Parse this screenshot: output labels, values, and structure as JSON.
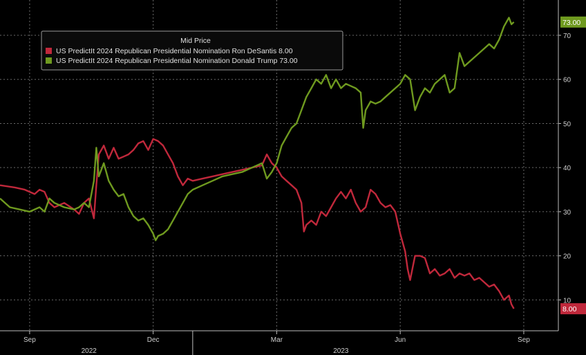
{
  "chart_data": {
    "type": "line",
    "legend": {
      "title": "Mid Price",
      "placement": "top-left"
    },
    "y_axis": {
      "side": "right",
      "range": [
        3,
        78
      ],
      "ticks": [
        10,
        20,
        30,
        40,
        50,
        60,
        70
      ],
      "grid": true
    },
    "x_axis": {
      "month_ticks": [
        {
          "label": "Sep",
          "x": 2022.67
        },
        {
          "label": "Dec",
          "x": 2022.92
        },
        {
          "label": "Mar",
          "x": 2023.17
        },
        {
          "label": "Jun",
          "x": 2023.42
        },
        {
          "label": "Sep",
          "x": 2023.67
        }
      ],
      "year_labels": [
        {
          "label": "2022",
          "x": 2022.79
        },
        {
          "label": "2023",
          "x": 2023.3
        }
      ],
      "range": [
        2022.61,
        2023.74
      ],
      "grid": true
    },
    "series": [
      {
        "name": "US PredictIt 2024 Republican Presidential Nomination Ron DeSantis",
        "last_value_text": "8.00",
        "color": "#c0283b",
        "points": [
          [
            2022.61,
            36
          ],
          [
            2022.64,
            35.5
          ],
          [
            2022.66,
            35
          ],
          [
            2022.68,
            34
          ],
          [
            2022.69,
            35
          ],
          [
            2022.7,
            34.5
          ],
          [
            2022.71,
            32
          ],
          [
            2022.72,
            31
          ],
          [
            2022.74,
            32
          ],
          [
            2022.76,
            30.5
          ],
          [
            2022.77,
            29.5
          ],
          [
            2022.78,
            32
          ],
          [
            2022.79,
            33
          ],
          [
            2022.8,
            28.5
          ],
          [
            2022.805,
            36
          ],
          [
            2022.81,
            43
          ],
          [
            2022.82,
            45
          ],
          [
            2022.83,
            42
          ],
          [
            2022.84,
            44.5
          ],
          [
            2022.85,
            42
          ],
          [
            2022.86,
            42.5
          ],
          [
            2022.87,
            43
          ],
          [
            2022.88,
            44
          ],
          [
            2022.89,
            45.5
          ],
          [
            2022.9,
            46
          ],
          [
            2022.91,
            44
          ],
          [
            2022.92,
            46.5
          ],
          [
            2022.93,
            46
          ],
          [
            2022.94,
            45
          ],
          [
            2022.95,
            43
          ],
          [
            2022.96,
            41
          ],
          [
            2022.97,
            38
          ],
          [
            2022.98,
            36
          ],
          [
            2022.99,
            37.5
          ],
          [
            2023.0,
            37
          ],
          [
            2023.02,
            37.5
          ],
          [
            2023.04,
            38
          ],
          [
            2023.06,
            38.5
          ],
          [
            2023.08,
            39
          ],
          [
            2023.1,
            39.5
          ],
          [
            2023.12,
            40
          ],
          [
            2023.14,
            40.5
          ],
          [
            2023.15,
            43
          ],
          [
            2023.16,
            41
          ],
          [
            2023.17,
            40
          ],
          [
            2023.18,
            38
          ],
          [
            2023.19,
            37
          ],
          [
            2023.2,
            36
          ],
          [
            2023.21,
            35
          ],
          [
            2023.22,
            32
          ],
          [
            2023.225,
            25.5
          ],
          [
            2023.23,
            27
          ],
          [
            2023.24,
            28
          ],
          [
            2023.25,
            27
          ],
          [
            2023.26,
            30
          ],
          [
            2023.27,
            29
          ],
          [
            2023.28,
            31
          ],
          [
            2023.29,
            33
          ],
          [
            2023.3,
            34.5
          ],
          [
            2023.31,
            33
          ],
          [
            2023.32,
            35
          ],
          [
            2023.33,
            32
          ],
          [
            2023.34,
            30
          ],
          [
            2023.35,
            31
          ],
          [
            2023.36,
            35
          ],
          [
            2023.37,
            34
          ],
          [
            2023.38,
            32
          ],
          [
            2023.39,
            31
          ],
          [
            2023.4,
            31.5
          ],
          [
            2023.41,
            30
          ],
          [
            2023.42,
            25
          ],
          [
            2023.43,
            21
          ],
          [
            2023.435,
            17
          ],
          [
            2023.44,
            14.5
          ],
          [
            2023.45,
            20
          ],
          [
            2023.46,
            20
          ],
          [
            2023.47,
            19.5
          ],
          [
            2023.48,
            16
          ],
          [
            2023.49,
            17
          ],
          [
            2023.5,
            15.5
          ],
          [
            2023.51,
            16
          ],
          [
            2023.52,
            17
          ],
          [
            2023.53,
            15
          ],
          [
            2023.54,
            16
          ],
          [
            2023.55,
            15.5
          ],
          [
            2023.56,
            16
          ],
          [
            2023.57,
            14.5
          ],
          [
            2023.58,
            15
          ],
          [
            2023.59,
            14
          ],
          [
            2023.6,
            13
          ],
          [
            2023.61,
            13.5
          ],
          [
            2023.62,
            12
          ],
          [
            2023.63,
            10
          ],
          [
            2023.64,
            11
          ],
          [
            2023.645,
            9
          ],
          [
            2023.65,
            8
          ]
        ]
      },
      {
        "name": "US PredictIt 2024 Republican Presidential Nomination Donald Trump",
        "last_value_text": "73.00",
        "color": "#6f9a1f",
        "points": [
          [
            2022.61,
            33
          ],
          [
            2022.63,
            31
          ],
          [
            2022.65,
            30.5
          ],
          [
            2022.67,
            30
          ],
          [
            2022.69,
            31
          ],
          [
            2022.7,
            30
          ],
          [
            2022.71,
            33
          ],
          [
            2022.72,
            32
          ],
          [
            2022.74,
            31
          ],
          [
            2022.76,
            30.5
          ],
          [
            2022.77,
            31
          ],
          [
            2022.78,
            32
          ],
          [
            2022.79,
            31
          ],
          [
            2022.8,
            37
          ],
          [
            2022.805,
            44.5
          ],
          [
            2022.81,
            38
          ],
          [
            2022.82,
            41
          ],
          [
            2022.83,
            37
          ],
          [
            2022.84,
            35
          ],
          [
            2022.85,
            33.5
          ],
          [
            2022.86,
            34
          ],
          [
            2022.87,
            31
          ],
          [
            2022.88,
            29
          ],
          [
            2022.89,
            28
          ],
          [
            2022.9,
            28.5
          ],
          [
            2022.91,
            27
          ],
          [
            2022.92,
            25
          ],
          [
            2022.925,
            23.5
          ],
          [
            2022.93,
            24.5
          ],
          [
            2022.94,
            25
          ],
          [
            2022.95,
            26
          ],
          [
            2022.96,
            28
          ],
          [
            2022.97,
            30
          ],
          [
            2022.98,
            32
          ],
          [
            2022.99,
            34
          ],
          [
            2023.0,
            35
          ],
          [
            2023.02,
            36
          ],
          [
            2023.04,
            37
          ],
          [
            2023.06,
            38
          ],
          [
            2023.08,
            38.5
          ],
          [
            2023.1,
            39
          ],
          [
            2023.12,
            40
          ],
          [
            2023.14,
            41
          ],
          [
            2023.15,
            37.5
          ],
          [
            2023.16,
            39
          ],
          [
            2023.17,
            41
          ],
          [
            2023.18,
            45
          ],
          [
            2023.19,
            47
          ],
          [
            2023.2,
            49
          ],
          [
            2023.21,
            50
          ],
          [
            2023.22,
            53
          ],
          [
            2023.23,
            56
          ],
          [
            2023.24,
            58
          ],
          [
            2023.25,
            60
          ],
          [
            2023.26,
            59
          ],
          [
            2023.27,
            61
          ],
          [
            2023.28,
            58
          ],
          [
            2023.29,
            60
          ],
          [
            2023.3,
            58
          ],
          [
            2023.31,
            59
          ],
          [
            2023.32,
            58.5
          ],
          [
            2023.33,
            58
          ],
          [
            2023.34,
            57
          ],
          [
            2023.345,
            49
          ],
          [
            2023.35,
            53
          ],
          [
            2023.36,
            55
          ],
          [
            2023.37,
            54.5
          ],
          [
            2023.38,
            55
          ],
          [
            2023.39,
            56
          ],
          [
            2023.4,
            57
          ],
          [
            2023.41,
            58
          ],
          [
            2023.42,
            59
          ],
          [
            2023.43,
            61
          ],
          [
            2023.44,
            60
          ],
          [
            2023.45,
            53
          ],
          [
            2023.46,
            56
          ],
          [
            2023.47,
            58
          ],
          [
            2023.48,
            57
          ],
          [
            2023.49,
            59
          ],
          [
            2023.5,
            60
          ],
          [
            2023.51,
            61
          ],
          [
            2023.52,
            57
          ],
          [
            2023.53,
            58
          ],
          [
            2023.54,
            66
          ],
          [
            2023.55,
            63
          ],
          [
            2023.56,
            64
          ],
          [
            2023.57,
            65
          ],
          [
            2023.58,
            66
          ],
          [
            2023.59,
            67
          ],
          [
            2023.6,
            68
          ],
          [
            2023.61,
            67
          ],
          [
            2023.62,
            69
          ],
          [
            2023.63,
            72
          ],
          [
            2023.64,
            74
          ],
          [
            2023.645,
            72.5
          ],
          [
            2023.65,
            73
          ]
        ]
      }
    ]
  }
}
